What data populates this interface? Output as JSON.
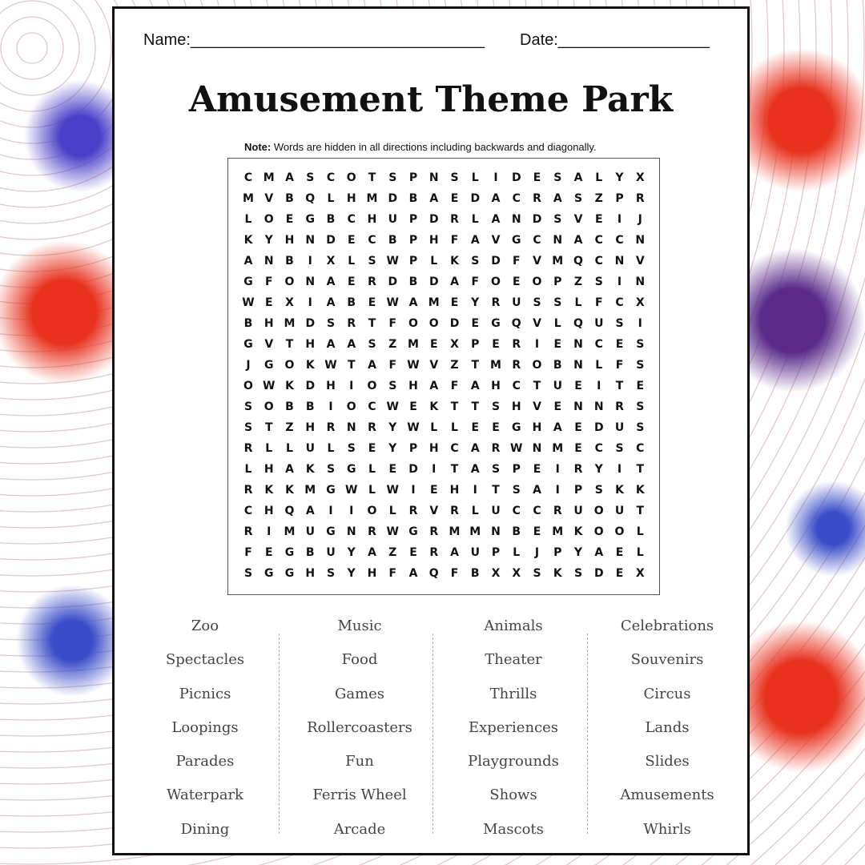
{
  "header": {
    "name_label": "Name:_________________________________",
    "date_label": "Date:_________________"
  },
  "title": "Amusement Theme Park",
  "note": {
    "bold": "Note:",
    "text": " Words are hidden in all directions including backwards and diagonally."
  },
  "grid": [
    "CMASCOTSPNSLIDESALYX",
    "MVBQLHMDBAEDACRASZPR",
    "LOEGBCHUPDRLANDSVEIJ",
    "KYHNDECBPHFAVGCNACCN",
    "ANBIXLSWPLKSDFVMQCNV",
    "GFONAERDBDAFOEOPZSIN",
    "WEXIABEWAMEYRUSSLFCX",
    "BHMDSRTFOODEGQVLQUSI",
    "GVTHAASZMEXPERIENCES",
    "JGOKWTAFWVZTMROBNLFS",
    "OWKDHIOSHAFAHCTUEITE",
    "SOBBIOCWEKTTSHVENNRS",
    "STZHRNRYWLLEEGHAEDUS",
    "RLLULSEYPHCARWNMECSC",
    "LHAKSGLEDITASPEIRYIT",
    "RKKMGWLWIEHITSAIPSKK",
    "CHQAIIOLRVRLUCCRUOUT",
    "RIMUGNRWGRMMNBEMKOOL",
    "FEGBUYAZERAUPLJPYAEL",
    "SGGHSYHFAQFBXXSKSDEX"
  ],
  "words": [
    [
      "Zoo",
      "Spectacles",
      "Picnics",
      "Loopings",
      "Parades",
      "Waterpark",
      "Dining"
    ],
    [
      "Music",
      "Food",
      "Games",
      "Rollercoasters",
      "Fun",
      "Ferris Wheel",
      "Arcade"
    ],
    [
      "Animals",
      "Theater",
      "Thrills",
      "Experiences",
      "Playgrounds",
      "Shows",
      "Mascots"
    ],
    [
      "Celebrations",
      "Souvenirs",
      "Circus",
      "Lands",
      "Slides",
      "Amusements",
      "Whirls"
    ]
  ]
}
